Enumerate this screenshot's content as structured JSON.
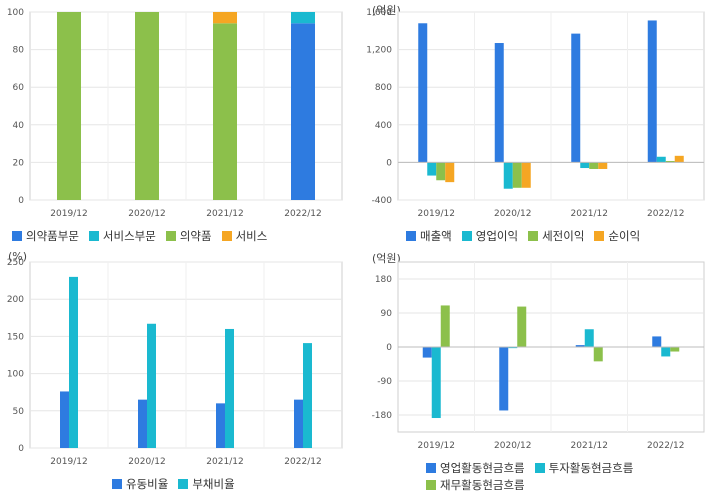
{
  "chart_data": [
    {
      "type": "bar",
      "stacked": true,
      "unit": "",
      "categories": [
        "2019/12",
        "2020/12",
        "2021/12",
        "2022/12"
      ],
      "ylim": [
        0,
        100
      ],
      "yticks": [
        0,
        20,
        40,
        60,
        80,
        100
      ],
      "grid": true,
      "legend_position": "bottom",
      "series": [
        {
          "name": "의약품부문",
          "color": "#2e7be0",
          "values": [
            0,
            0,
            0,
            94
          ]
        },
        {
          "name": "서비스부문",
          "color": "#1ab9d0",
          "values": [
            0,
            0,
            0,
            6
          ]
        },
        {
          "name": "의약품",
          "color": "#8cc04b",
          "values": [
            100,
            100,
            94,
            0
          ]
        },
        {
          "name": "서비스",
          "color": "#f5a623",
          "values": [
            0,
            0,
            6,
            0
          ]
        }
      ]
    },
    {
      "type": "bar",
      "stacked": false,
      "unit": "(억원)",
      "categories": [
        "2019/12",
        "2020/12",
        "2021/12",
        "2022/12"
      ],
      "ylim": [
        -400,
        1600
      ],
      "yticks": [
        -400,
        0,
        400,
        800,
        1200,
        1600
      ],
      "grid": true,
      "legend_position": "bottom",
      "series": [
        {
          "name": "매출액",
          "color": "#2e7be0",
          "values": [
            1480,
            1270,
            1370,
            1510
          ]
        },
        {
          "name": "영업이익",
          "color": "#1ab9d0",
          "values": [
            -140,
            -280,
            -60,
            60
          ]
        },
        {
          "name": "세전이익",
          "color": "#8cc04b",
          "values": [
            -190,
            -270,
            -70,
            15
          ]
        },
        {
          "name": "순이익",
          "color": "#f5a623",
          "values": [
            -210,
            -270,
            -70,
            70
          ]
        }
      ]
    },
    {
      "type": "bar",
      "stacked": false,
      "unit": "(%)",
      "categories": [
        "2019/12",
        "2020/12",
        "2021/12",
        "2022/12"
      ],
      "ylim": [
        0,
        250
      ],
      "yticks": [
        0,
        50,
        100,
        150,
        200,
        250
      ],
      "grid": true,
      "legend_position": "bottom",
      "series": [
        {
          "name": "유동비율",
          "color": "#2e7be0",
          "values": [
            76,
            65,
            60,
            65
          ]
        },
        {
          "name": "부채비율",
          "color": "#1ab9d0",
          "values": [
            230,
            167,
            160,
            141
          ]
        }
      ]
    },
    {
      "type": "bar",
      "stacked": false,
      "unit": "(억원)",
      "categories": [
        "2019/12",
        "2020/12",
        "2021/12",
        "2022/12"
      ],
      "ylim": [
        -225,
        225
      ],
      "yticks": [
        -180,
        -90,
        0,
        90,
        180
      ],
      "grid": true,
      "legend_position": "bottom",
      "series": [
        {
          "name": "영업활동현금흐름",
          "color": "#2e7be0",
          "values": [
            -28,
            -168,
            5,
            28
          ]
        },
        {
          "name": "투자활동현금흐름",
          "color": "#1ab9d0",
          "values": [
            -188,
            -3,
            47,
            -25
          ]
        },
        {
          "name": "재무활동현금흐름",
          "color": "#8cc04b",
          "values": [
            110,
            107,
            -38,
            -12
          ]
        }
      ]
    }
  ]
}
